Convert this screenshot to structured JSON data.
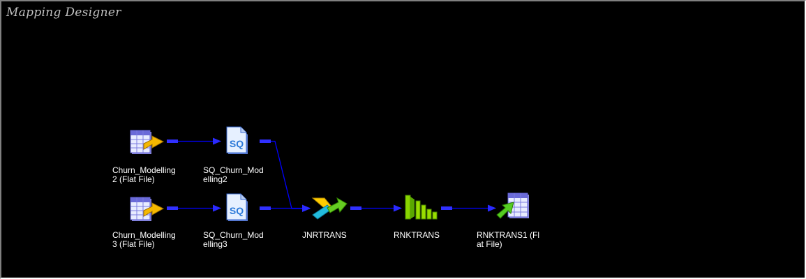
{
  "canvas": {
    "title": "Mapping Designer",
    "background": "#000000"
  },
  "nodes": {
    "src2": {
      "label": "Churn_Modelling\n2 (Flat File)",
      "icon": "flat-file-source-icon"
    },
    "sq2": {
      "label": "SQ_Churn_Mod\nelling2",
      "icon": "source-qualifier-icon",
      "badge": "SQ"
    },
    "src3": {
      "label": "Churn_Modelling\n3 (Flat File)",
      "icon": "flat-file-source-icon"
    },
    "sq3": {
      "label": "SQ_Churn_Mod\nelling3",
      "icon": "source-qualifier-icon",
      "badge": "SQ"
    },
    "jnr": {
      "label": "JNRTRANS",
      "icon": "joiner-transformation-icon"
    },
    "rnk": {
      "label": "RNKTRANS",
      "icon": "rank-transformation-icon"
    },
    "tgt": {
      "label": "RNKTRANS1 (Fl\nat File)",
      "icon": "flat-file-target-icon"
    }
  },
  "colors": {
    "link": "#0000ff",
    "port": "#3030ff",
    "label": "#ffffff",
    "joiner_yellow": "#ffcc00",
    "joiner_cyan": "#22bbdd",
    "rank_green": "#99dd00"
  }
}
